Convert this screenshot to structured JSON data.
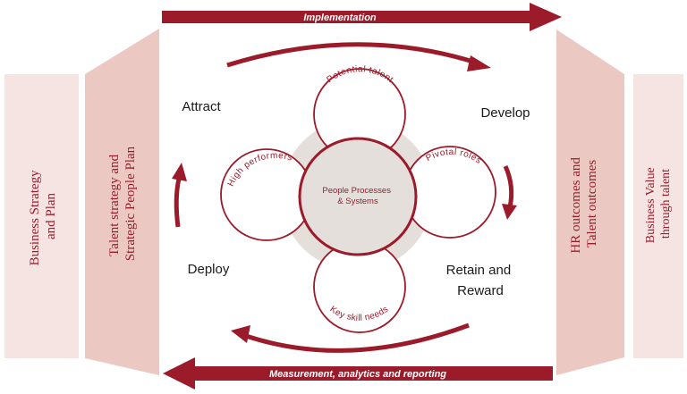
{
  "colors": {
    "accent": "#9b1b2a",
    "panel_light": "#f6e4e2",
    "panel_mid": "#ecc8c3",
    "center_disc": "#e5dfdc",
    "text_dark": "#1a1a1a",
    "white": "#ffffff"
  },
  "arrows": {
    "top_label": "Implementation",
    "bottom_label": "Measurement, analytics and reporting"
  },
  "left_panels": {
    "outer": [
      "Business Strategy",
      "and Plan"
    ],
    "inner": [
      "Talent strategy and",
      "Strategic People Plan"
    ]
  },
  "right_panels": {
    "inner": [
      "HR outcomes and",
      "Talent outcomes"
    ],
    "outer": [
      "Business Value",
      "through talent"
    ]
  },
  "cycle": {
    "attract": "Attract",
    "develop": "Develop",
    "retain": [
      "Retain and",
      "Reward"
    ],
    "deploy": "Deploy"
  },
  "circles": {
    "center": [
      "People Processes",
      "& Systems"
    ],
    "top": "Potential talent",
    "right": "Pivotal roles",
    "bottom": "Key skill needs",
    "left": "High performers"
  }
}
